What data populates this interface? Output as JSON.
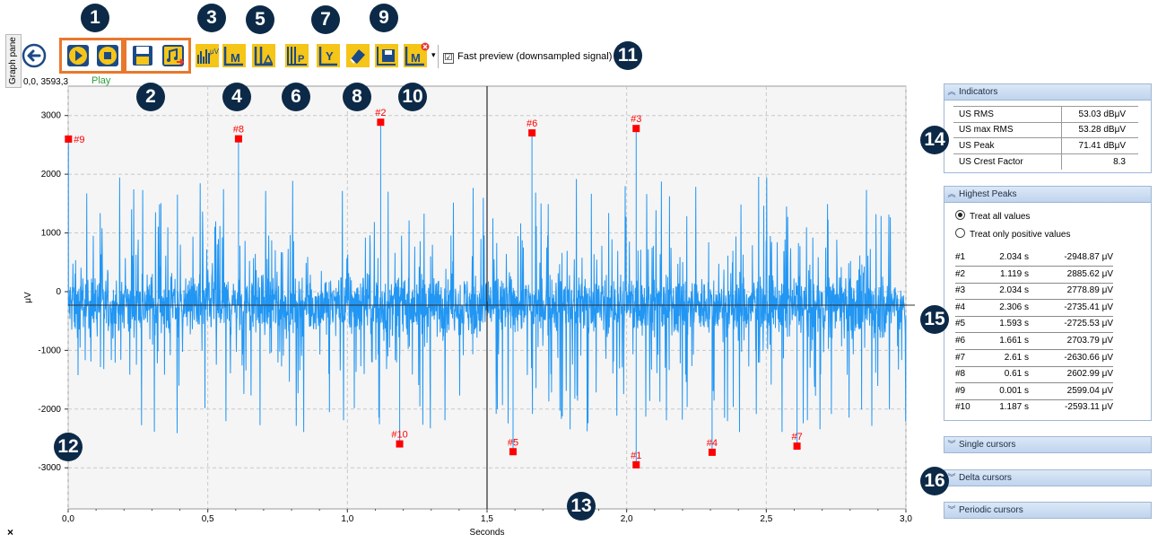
{
  "side_tab": {
    "label": "Graph pane"
  },
  "toolbar": {
    "coord_readout": "0,0, 3593,3",
    "play_label": "Play",
    "fast_preview_label": "Fast preview (downsampled signal)",
    "fast_preview_checked": "☑",
    "dropdown_glyph": "▾",
    "toggle_m_label": "M",
    "yaxis_label": "Y",
    "uv_label": "μV",
    "p_label": "P"
  },
  "callouts": [
    "1",
    "2",
    "3",
    "4",
    "5",
    "6",
    "7",
    "8",
    "9",
    "10",
    "11",
    "12",
    "13",
    "14",
    "15",
    "16"
  ],
  "close_glyph": "×",
  "colors": {
    "signal": "#2196f3",
    "marker": "#ff0000",
    "plot_bg": "#f5f5f5",
    "callout": "#0c2a47",
    "highlight_box": "#e8782c",
    "button_yellow": "#f5c518",
    "panel_header": "#c9dbf0"
  },
  "chart_data": {
    "type": "line",
    "xlabel": "Seconds",
    "ylabel": "μV",
    "xlim": [
      0,
      3.0
    ],
    "ylim": [
      -3700,
      3500
    ],
    "x_ticks": [
      0,
      0.5,
      1.0,
      1.5,
      2.0,
      2.5,
      3.0
    ],
    "x_tick_labels": [
      "0,0",
      "0,5",
      "1,0",
      "1,5",
      "2,0",
      "2,5",
      "3,0"
    ],
    "y_ticks": [
      3000,
      2000,
      1000,
      0,
      -1000,
      -2000,
      -3000
    ],
    "y_tick_labels": [
      "3000",
      "2000",
      "1000",
      "0",
      "-1000",
      "-2000",
      "-3000"
    ],
    "grid": true,
    "cursor_x": 1.5,
    "cursor_y": -230,
    "peaks": [
      {
        "label": "#1",
        "x": 2.034,
        "y": -2948.87
      },
      {
        "label": "#2",
        "x": 1.119,
        "y": 2885.62
      },
      {
        "label": "#3",
        "x": 2.034,
        "y": 2778.89
      },
      {
        "label": "#4",
        "x": 2.306,
        "y": -2735.41
      },
      {
        "label": "#5",
        "x": 1.593,
        "y": -2725.53
      },
      {
        "label": "#6",
        "x": 1.661,
        "y": 2703.79
      },
      {
        "label": "#7",
        "x": 2.61,
        "y": -2630.66
      },
      {
        "label": "#8",
        "x": 0.61,
        "y": 2602.99
      },
      {
        "label": "#9",
        "x": 0.001,
        "y": 2599.04
      },
      {
        "label": "#10",
        "x": 1.187,
        "y": -2593.11
      }
    ]
  },
  "indicators": {
    "title": "Indicators",
    "rows": [
      {
        "name": "US RMS",
        "value": "53.03 dBμV"
      },
      {
        "name": "US max RMS",
        "value": "53.28 dBμV"
      },
      {
        "name": "US Peak",
        "value": "71.41 dBμV"
      },
      {
        "name": "US Crest Factor",
        "value": "8.3"
      }
    ]
  },
  "highest_peaks": {
    "title": "Highest Peaks",
    "option_all": "Treat all values",
    "option_positive": "Treat only positive values",
    "rows": [
      {
        "idx": "#1",
        "time": "2.034 s",
        "value": "-2948.87 μV"
      },
      {
        "idx": "#2",
        "time": "1.119 s",
        "value": "2885.62 μV"
      },
      {
        "idx": "#3",
        "time": "2.034 s",
        "value": "2778.89 μV"
      },
      {
        "idx": "#4",
        "time": "2.306 s",
        "value": "-2735.41 μV"
      },
      {
        "idx": "#5",
        "time": "1.593 s",
        "value": "-2725.53 μV"
      },
      {
        "idx": "#6",
        "time": "1.661 s",
        "value": "2703.79 μV"
      },
      {
        "idx": "#7",
        "time": "2.61 s",
        "value": "-2630.66 μV"
      },
      {
        "idx": "#8",
        "time": "0.61 s",
        "value": "2602.99 μV"
      },
      {
        "idx": "#9",
        "time": "0.001 s",
        "value": "2599.04 μV"
      },
      {
        "idx": "#10",
        "time": "1.187 s",
        "value": "-2593.11 μV"
      }
    ]
  },
  "collapsed_panels": {
    "single": "Single cursors",
    "delta": "Delta cursors",
    "periodic": "Periodic cursors"
  }
}
